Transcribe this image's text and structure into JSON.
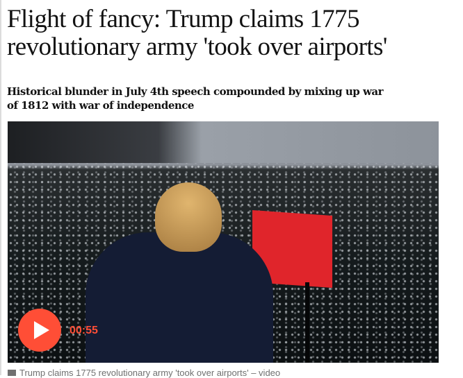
{
  "article": {
    "headline": "Flight of fancy: Trump claims 1775 revolutionary army 'took over airports'",
    "standfirst": "Historical blunder in July 4th speech compounded by mixing up war of 1812 with war of independence",
    "video": {
      "duration": "00:55",
      "accent_color": "#ff4e36",
      "caption": "Trump claims 1775 revolutionary army 'took over airports' – video"
    }
  }
}
